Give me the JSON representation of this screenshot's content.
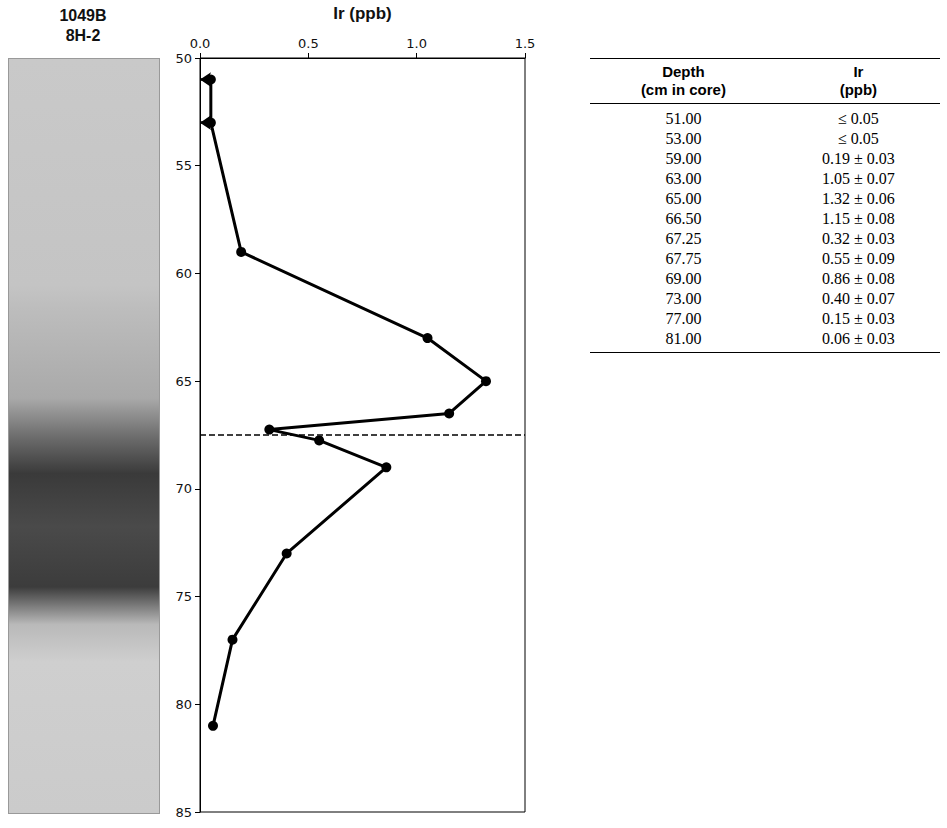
{
  "core_label": [
    "1049B",
    "8H-2"
  ],
  "chart_data": {
    "type": "line",
    "x_label": "Ir (ppb)",
    "x": [
      0.05,
      0.05,
      0.19,
      1.05,
      1.32,
      1.15,
      0.32,
      0.55,
      0.86,
      0.4,
      0.15,
      0.06
    ],
    "y": [
      51,
      53,
      59,
      63,
      65,
      66.5,
      67.25,
      67.75,
      69,
      73,
      77,
      81
    ],
    "upper_limits": [
      true,
      true,
      false,
      false,
      false,
      false,
      false,
      false,
      false,
      false,
      false,
      false
    ],
    "boundary_depth": 67.5,
    "color": "#000000",
    "marker": "circle",
    "xlim": [
      0,
      1.5
    ],
    "xticks": [
      {
        "value": 0,
        "label": "0.0"
      },
      {
        "value": 0.5,
        "label": "0.5"
      },
      {
        "value": 1,
        "label": "1.0"
      },
      {
        "value": 1.5,
        "label": "1.5"
      }
    ],
    "ylim": [
      50,
      85
    ],
    "yticks": [
      50,
      55,
      60,
      65,
      70,
      75,
      80,
      85
    ],
    "grid": false
  },
  "table": {
    "header": [
      "Depth (cm in core)",
      "Ir (ppb)"
    ],
    "rows": [
      [
        "51.00",
        "≤ 0.05"
      ],
      [
        "53.00",
        "≤ 0.05"
      ],
      [
        "59.00",
        "0.19 ± 0.03"
      ],
      [
        "63.00",
        "1.05 ± 0.07"
      ],
      [
        "65.00",
        "1.32 ± 0.06"
      ],
      [
        "66.50",
        "1.15 ± 0.08"
      ],
      [
        "67.25",
        "0.32 ± 0.03"
      ],
      [
        "67.75",
        "0.55 ± 0.09"
      ],
      [
        "69.00",
        "0.86 ± 0.08"
      ],
      [
        "73.00",
        "0.40 ± 0.07"
      ],
      [
        "77.00",
        "0.15 ± 0.03"
      ],
      [
        "81.00",
        "0.06 ± 0.03"
      ]
    ]
  }
}
